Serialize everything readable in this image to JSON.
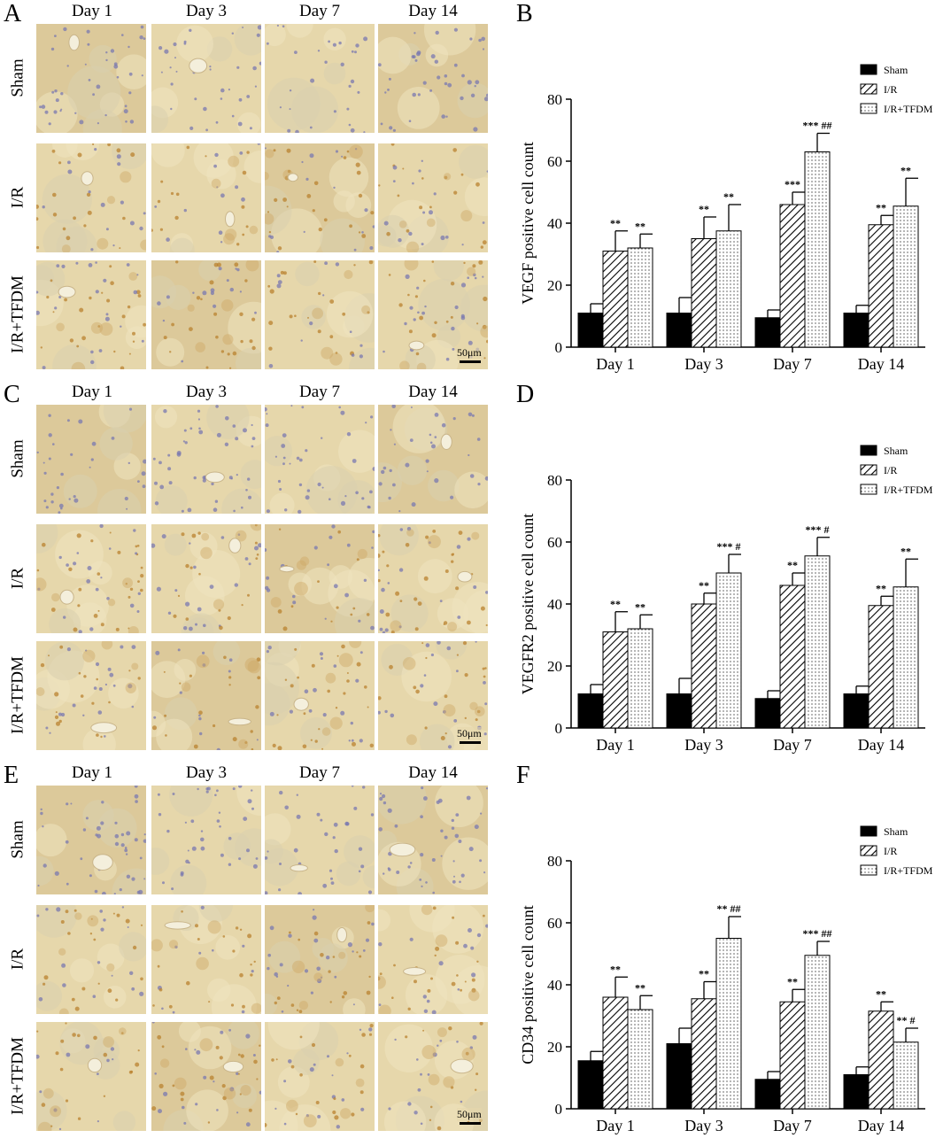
{
  "figure": {
    "panel_letters": [
      "A",
      "B",
      "C",
      "D",
      "E",
      "F"
    ],
    "micrograph_columns": [
      "Day 1",
      "Day 3",
      "Day 7",
      "Day 14"
    ],
    "micrograph_rows": [
      "Sham",
      "I/R",
      "I/R+TFDM"
    ],
    "scale_bar_label": "50μm",
    "colors": {
      "tile_base": "#e6d7ab",
      "tile_base_dark": "#dcc99a",
      "nucleus_blue": "#7a78b0",
      "stain_brown": "#b9822f",
      "vessel_white": "#f4efdc",
      "bar_black": "#000000"
    }
  },
  "chart_data": [
    {
      "type": "bar",
      "panel": "B",
      "ylabel": "VEGF positive cell count",
      "xlabel": "",
      "ylim": [
        0,
        80
      ],
      "yticks": [
        0,
        20,
        40,
        60,
        80
      ],
      "categories": [
        "Day 1",
        "Day 3",
        "Day 7",
        "Day 14"
      ],
      "legend_position": "top-right",
      "series": [
        {
          "name": "Sham",
          "fill": "solid",
          "values": [
            11,
            11,
            9.5,
            11
          ],
          "errors": [
            3,
            5,
            2.5,
            2.5
          ],
          "labels": [
            "",
            "",
            "",
            ""
          ]
        },
        {
          "name": "I/R",
          "fill": "hatch",
          "values": [
            31,
            35,
            46,
            39.5
          ],
          "errors": [
            6.5,
            7,
            4,
            3
          ],
          "labels": [
            "**",
            "**",
            "***",
            "**"
          ]
        },
        {
          "name": "I/R+TFDM",
          "fill": "dots",
          "values": [
            32,
            37.5,
            63,
            45.5
          ],
          "errors": [
            4.5,
            8.5,
            6,
            9
          ],
          "labels": [
            "**",
            "**",
            "*** ##",
            "**"
          ]
        }
      ]
    },
    {
      "type": "bar",
      "panel": "D",
      "ylabel": "VEGFR2 positive cell count",
      "xlabel": "",
      "ylim": [
        0,
        80
      ],
      "yticks": [
        0,
        20,
        40,
        60,
        80
      ],
      "categories": [
        "Day 1",
        "Day 3",
        "Day 7",
        "Day 14"
      ],
      "legend_position": "top-right",
      "series": [
        {
          "name": "Sham",
          "fill": "solid",
          "values": [
            11,
            11,
            9.5,
            11
          ],
          "errors": [
            3,
            5,
            2.5,
            2.5
          ],
          "labels": [
            "",
            "",
            "",
            ""
          ]
        },
        {
          "name": "I/R",
          "fill": "hatch",
          "values": [
            31,
            40,
            46,
            39.5
          ],
          "errors": [
            6.5,
            3.5,
            4,
            3
          ],
          "labels": [
            "**",
            "**",
            "**",
            "**"
          ]
        },
        {
          "name": "I/R+TFDM",
          "fill": "dots",
          "values": [
            32,
            50,
            55.5,
            45.5
          ],
          "errors": [
            4.5,
            6,
            6,
            9
          ],
          "labels": [
            "**",
            "*** #",
            "*** #",
            "**"
          ]
        }
      ]
    },
    {
      "type": "bar",
      "panel": "F",
      "ylabel": "CD34 positive cell count",
      "xlabel": "",
      "ylim": [
        0,
        80
      ],
      "yticks": [
        0,
        20,
        40,
        60,
        80
      ],
      "categories": [
        "Day 1",
        "Day 3",
        "Day 7",
        "Day 14"
      ],
      "legend_position": "top-right",
      "series": [
        {
          "name": "Sham",
          "fill": "solid",
          "values": [
            15.5,
            21,
            9.5,
            11
          ],
          "errors": [
            3,
            5,
            2.5,
            2.5
          ],
          "labels": [
            "",
            "",
            "",
            ""
          ]
        },
        {
          "name": "I/R",
          "fill": "hatch",
          "values": [
            36,
            35.5,
            34.5,
            31.5
          ],
          "errors": [
            6.5,
            5.5,
            4,
            3
          ],
          "labels": [
            "**",
            "**",
            "**",
            "**"
          ]
        },
        {
          "name": "I/R+TFDM",
          "fill": "dots",
          "values": [
            32,
            55,
            49.5,
            21.5
          ],
          "errors": [
            4.5,
            7,
            4.5,
            4.5
          ],
          "labels": [
            "**",
            "** ##",
            "*** ##",
            "** #"
          ]
        }
      ]
    }
  ]
}
